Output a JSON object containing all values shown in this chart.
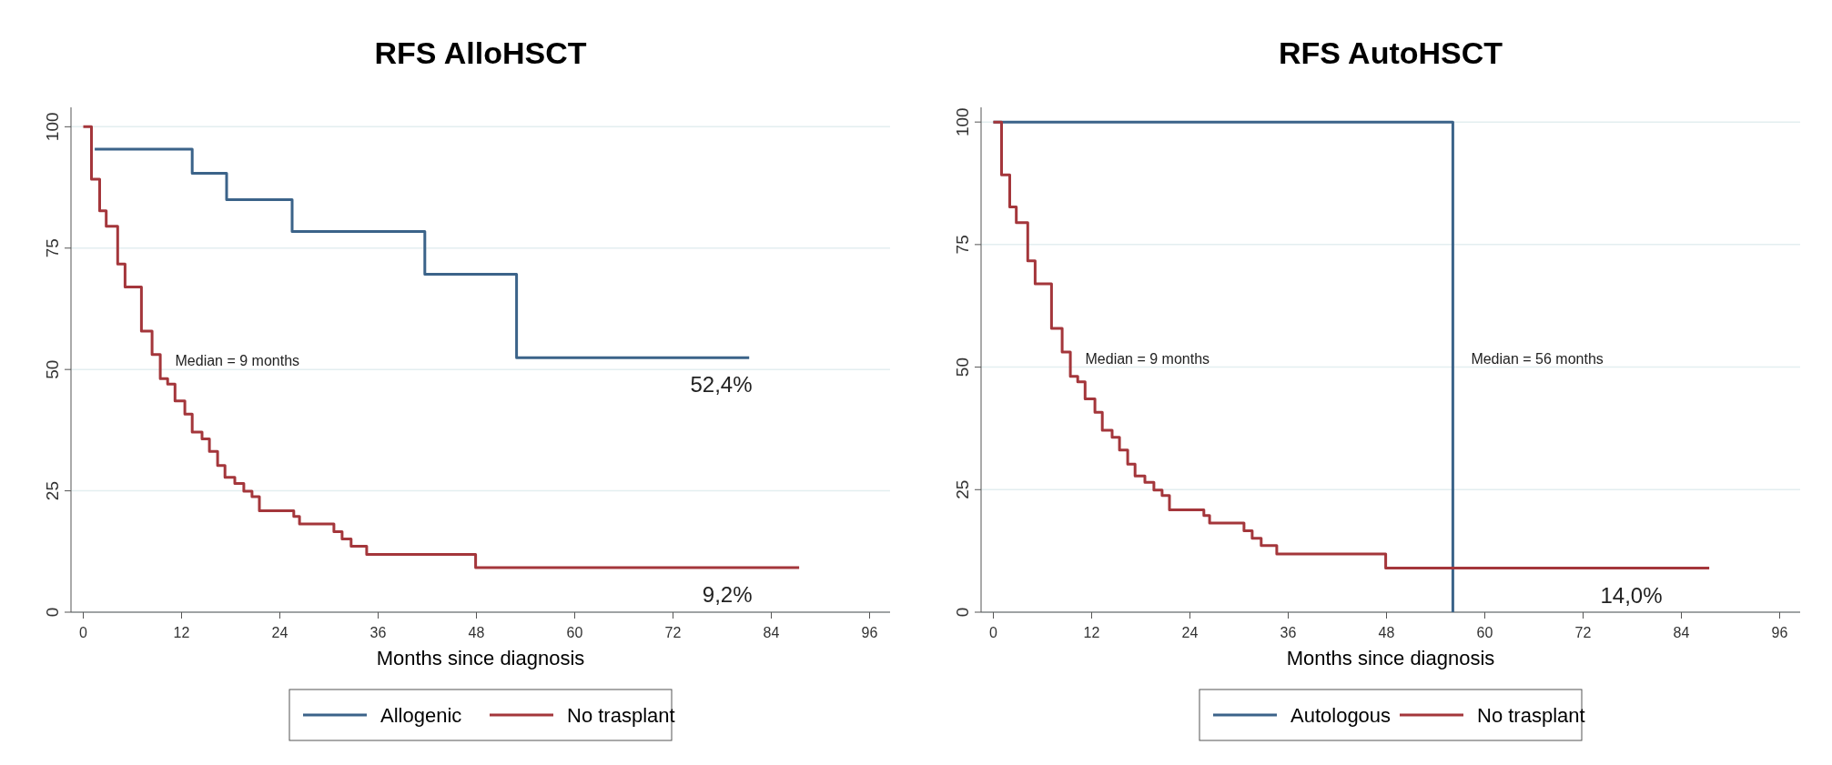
{
  "chart_data": [
    {
      "type": "step",
      "title": "RFS AlloHSCT",
      "xlabel": "Months since diagnosis",
      "xlim": [
        -1.5,
        98.5
      ],
      "xticks": [
        0,
        12,
        24,
        36,
        48,
        60,
        72,
        84,
        96
      ],
      "ylim": [
        0,
        104
      ],
      "yticks": [
        0,
        25,
        50,
        75,
        100
      ],
      "grid": "y",
      "legend": "bottom",
      "line_style": "solid",
      "annotations": [
        {
          "text": "Median = 9 months",
          "x": 9,
          "y": 50
        },
        {
          "text": "52,4%",
          "x": 80,
          "y": 52.4
        },
        {
          "text": "9,2%",
          "x": 80,
          "y": 9.2
        }
      ],
      "series": [
        {
          "name": "Allogenic",
          "color": "#3b6389",
          "x": [
            1.4,
            13.3,
            17.5,
            25.5,
            41.7,
            52.9,
            81.3
          ],
          "values": [
            95.4,
            90.4,
            85,
            78.4,
            69.6,
            52.4,
            52.4
          ]
        },
        {
          "name": "No trasplant",
          "color": "#a4363b",
          "x": [
            0,
            1,
            2,
            2.8,
            4.2,
            5.1,
            7.1,
            8.4,
            9.4,
            10.3,
            11.2,
            12.4,
            13.3,
            14.5,
            15.4,
            16.4,
            17.3,
            18.5,
            19.6,
            20.6,
            21.5,
            25.7,
            26.4,
            30.6,
            31.6,
            32.7,
            34.6,
            47.9,
            87.4
          ],
          "values": [
            100,
            89.2,
            82.7,
            79.5,
            71.7,
            67,
            57.9,
            53.1,
            48.1,
            47,
            43.5,
            40.8,
            37.1,
            35.7,
            33.1,
            30.2,
            27.8,
            26.5,
            24.9,
            23.8,
            20.9,
            19.7,
            18.2,
            16.6,
            15.1,
            13.6,
            11.9,
            9.2,
            9.2
          ]
        }
      ]
    },
    {
      "type": "step",
      "title": "RFS AutoHSCT",
      "xlabel": "Months since diagnosis",
      "xlim": [
        -1.5,
        98.5
      ],
      "xticks": [
        0,
        12,
        24,
        36,
        48,
        60,
        72,
        84,
        96
      ],
      "ylim": [
        0,
        103
      ],
      "yticks": [
        0,
        25,
        50,
        75,
        100
      ],
      "grid": "y",
      "legend": "bottom",
      "line_style": "solid",
      "annotations": [
        {
          "text": "Median = 9 months",
          "x": 9,
          "y": 50
        },
        {
          "text": "Median = 56 months",
          "x": 56.1,
          "y": 50
        },
        {
          "text": "14,0%",
          "x": 80,
          "y": 9
        }
      ],
      "series": [
        {
          "name": "Autologous",
          "color": "#3b6389",
          "x": [
            0,
            56.1,
            56.1
          ],
          "values": [
            100,
            100,
            0
          ]
        },
        {
          "name": "No trasplant",
          "color": "#a4363b",
          "x": [
            0,
            1,
            2,
            2.8,
            4.2,
            5.1,
            7.1,
            8.4,
            9.4,
            10.3,
            11.2,
            12.4,
            13.3,
            14.5,
            15.4,
            16.4,
            17.3,
            18.5,
            19.6,
            20.6,
            21.5,
            25.7,
            26.4,
            30.6,
            31.6,
            32.7,
            34.6,
            47.9,
            87.4
          ],
          "values": [
            100,
            89.2,
            82.7,
            79.5,
            71.7,
            67,
            57.9,
            53.1,
            48.1,
            47,
            43.5,
            40.8,
            37.1,
            35.7,
            33.1,
            30.2,
            27.8,
            26.5,
            24.9,
            23.8,
            20.9,
            19.7,
            18.2,
            16.6,
            15.1,
            13.6,
            11.9,
            9,
            9
          ]
        }
      ]
    }
  ]
}
